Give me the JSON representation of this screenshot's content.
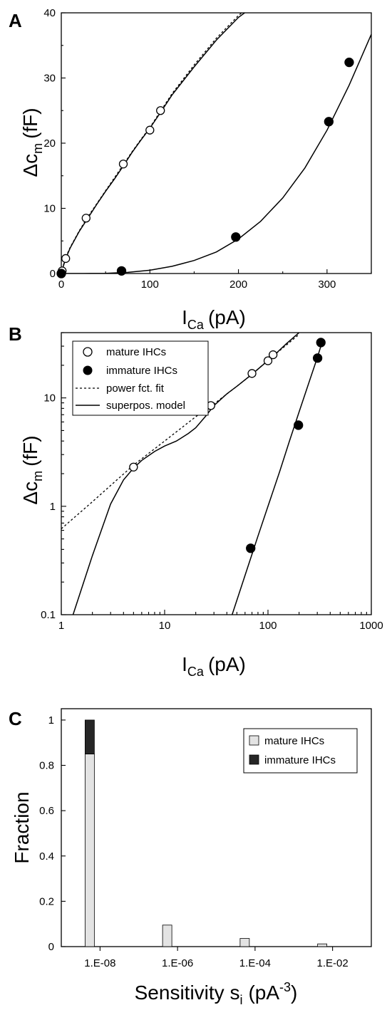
{
  "chart_data": [
    {
      "panel": "A",
      "type": "scatter",
      "xlabel": "I",
      "xlabel_sub": "Ca",
      "xlabel_unit": "(pA)",
      "ylabel": "Δc",
      "ylabel_sub": "m",
      "ylabel_unit": "(fF)",
      "xlim": [
        0,
        350
      ],
      "ylim": [
        0,
        40
      ],
      "xticks": [
        0,
        100,
        200,
        300
      ],
      "yticks": [
        0,
        10,
        20,
        30,
        40
      ],
      "series": [
        {
          "marker": "open-circle",
          "x": [
            0,
            1,
            5,
            28,
            70,
            100,
            112
          ],
          "y": [
            0,
            0.4,
            2.3,
            8.5,
            16.8,
            22,
            25
          ]
        },
        {
          "marker": "filled-circle",
          "x": [
            0,
            68,
            197,
            302,
            325
          ],
          "y": [
            0,
            0.4,
            5.6,
            23.3,
            32.4
          ]
        }
      ],
      "curves": [
        {
          "style": "solid",
          "x": [
            0,
            2,
            5,
            10,
            20,
            30,
            40,
            50,
            60,
            70,
            80,
            90,
            100,
            112,
            125,
            150,
            175,
            200,
            215
          ],
          "y": [
            0,
            1.0,
            2.3,
            3.9,
            6.4,
            8.5,
            10.6,
            12.6,
            14.5,
            16.5,
            18.6,
            20.5,
            22.3,
            24.7,
            27.4,
            31.7,
            35.8,
            39.3,
            40.8
          ]
        },
        {
          "style": "dotted",
          "x": [
            0,
            2,
            5,
            10,
            20,
            30,
            40,
            50,
            60,
            70,
            80,
            90,
            100,
            112,
            125,
            150,
            175,
            200,
            212
          ],
          "y": [
            0,
            1.1,
            2.5,
            4.0,
            6.5,
            8.7,
            10.7,
            12.7,
            14.7,
            16.7,
            18.7,
            20.6,
            22.4,
            24.9,
            27.6,
            32.0,
            36.1,
            39.6,
            40.9
          ]
        },
        {
          "style": "solid",
          "x": [
            0,
            25,
            50,
            75,
            100,
            125,
            150,
            175,
            200,
            225,
            250,
            275,
            300,
            325,
            350
          ],
          "y": [
            0,
            0.002,
            0.03,
            0.17,
            0.5,
            1.1,
            2.0,
            3.3,
            5.3,
            8.0,
            11.6,
            16.2,
            22.0,
            28.9,
            36.7
          ]
        }
      ]
    },
    {
      "panel": "B",
      "type": "scatter",
      "xscale": "log",
      "yscale": "log",
      "xlabel": "I",
      "xlabel_sub": "Ca",
      "xlabel_unit": "(pA)",
      "ylabel": "Δc",
      "ylabel_sub": "m",
      "ylabel_unit": "(fF)",
      "xlim": [
        1,
        1000
      ],
      "ylim": [
        0.1,
        40
      ],
      "xtick_labels": [
        "1",
        "10",
        "100",
        "1000"
      ],
      "ytick_labels": [
        "0.1",
        "1",
        "10"
      ],
      "legend": [
        "mature IHCs",
        "immature IHCs",
        "power fct. fit",
        "superpos. model"
      ],
      "legend_placement": "top-left",
      "series": [
        {
          "name": "mature IHCs",
          "marker": "open-circle",
          "x": [
            5,
            28,
            70,
            100,
            112
          ],
          "y": [
            2.3,
            8.5,
            16.8,
            22,
            25
          ]
        },
        {
          "name": "immature IHCs",
          "marker": "filled-circle",
          "x": [
            68,
            197,
            302,
            325
          ],
          "y": [
            0.41,
            5.6,
            23.3,
            32.4
          ]
        }
      ],
      "curves": [
        {
          "name": "power fct. fit",
          "style": "dotted",
          "x": [
            1,
            2,
            5,
            10,
            20,
            30,
            50,
            70,
            100,
            150,
            200
          ],
          "y": [
            0.62,
            1.1,
            2.4,
            4.0,
            6.7,
            8.8,
            12.8,
            16.5,
            22.2,
            30.6,
            38.5
          ]
        },
        {
          "name": "superpos. model",
          "style": "solid",
          "x": [
            1.3,
            2,
            3,
            4,
            5,
            6,
            8,
            10,
            13,
            17,
            20,
            25,
            30,
            40,
            50,
            70,
            100,
            120,
            150,
            200
          ],
          "y": [
            0.1,
            0.35,
            1.05,
            1.75,
            2.25,
            2.65,
            3.2,
            3.6,
            4.0,
            4.7,
            5.3,
            6.8,
            8.5,
            10.9,
            12.8,
            16.5,
            22.1,
            25.8,
            31.5,
            40
          ]
        },
        {
          "name": "superpos. model",
          "style": "solid",
          "x": [
            45,
            60,
            80,
            100,
            130,
            160,
            200,
            250,
            300,
            330
          ],
          "y": [
            0.1,
            0.23,
            0.53,
            1.0,
            2.1,
            3.9,
            7.4,
            14.0,
            23.5,
            31.5
          ]
        }
      ]
    },
    {
      "panel": "C",
      "type": "bar",
      "xlabel": "Sensitivity s",
      "xlabel_sub": "i",
      "xlabel_unit": "(pA",
      "xlabel_sup": "-3",
      "ylabel": "Fraction",
      "ylim": [
        0,
        1.05
      ],
      "yticks": [
        0,
        0.2,
        0.4,
        0.6,
        0.8,
        1
      ],
      "ytick_labels": [
        "0",
        "0.2",
        "0.4",
        "0.6",
        "0.8",
        "1"
      ],
      "categories": [
        "1.E-08",
        "1.E-06",
        "1.E-04",
        "1.E-02"
      ],
      "legend": [
        "mature IHCs",
        "immature IHCs"
      ],
      "legend_placement": "top-right",
      "bars": [
        {
          "category": "1.E-08",
          "mature": 0.85,
          "immature_top": 1.0
        },
        {
          "category": "1.E-06",
          "mature": 0.095,
          "immature_top": 0
        },
        {
          "category": "1.E-04",
          "mature": 0.036,
          "immature_top": 0
        },
        {
          "category": "1.E-02",
          "mature": 0.012,
          "immature_top": 0
        }
      ],
      "colors": {
        "mature": "#e3e3e3",
        "immature": "#262626"
      }
    }
  ]
}
